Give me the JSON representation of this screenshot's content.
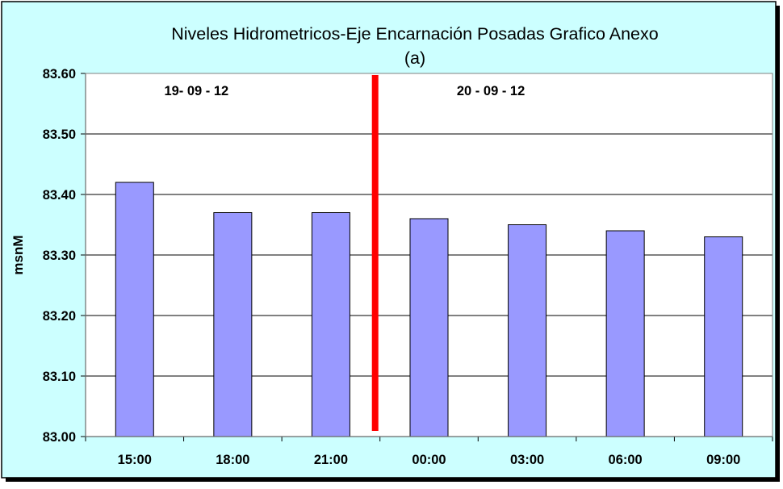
{
  "chart_data": {
    "type": "bar",
    "title": "Niveles Hidrometricos-Eje Encarnación Posadas Grafico Anexo",
    "subtitle": "(a)",
    "xlabel": "",
    "ylabel": "msnM",
    "categories": [
      "15:00",
      "18:00",
      "21:00",
      "00:00",
      "03:00",
      "06:00",
      "09:00"
    ],
    "values": [
      83.42,
      83.37,
      83.37,
      83.36,
      83.35,
      83.34,
      83.33
    ],
    "ylim": [
      83.0,
      83.6
    ],
    "yticks": [
      "83.00",
      "83.10",
      "83.20",
      "83.30",
      "83.40",
      "83.50",
      "83.60"
    ],
    "grid": true,
    "legend": "none",
    "annotations": [
      {
        "text": "19- 09 - 12",
        "near_category": "18:00"
      },
      {
        "text": "20 - 09 - 12",
        "near_category": "03:00"
      }
    ],
    "divider_after_category": "21:00",
    "colors": {
      "bar": "#9999ff",
      "bar_stroke": "#000000",
      "divider": "#ff0000",
      "chart_background": "#ccffff",
      "plot_background": "#ffffff",
      "grid": "#000000"
    }
  }
}
